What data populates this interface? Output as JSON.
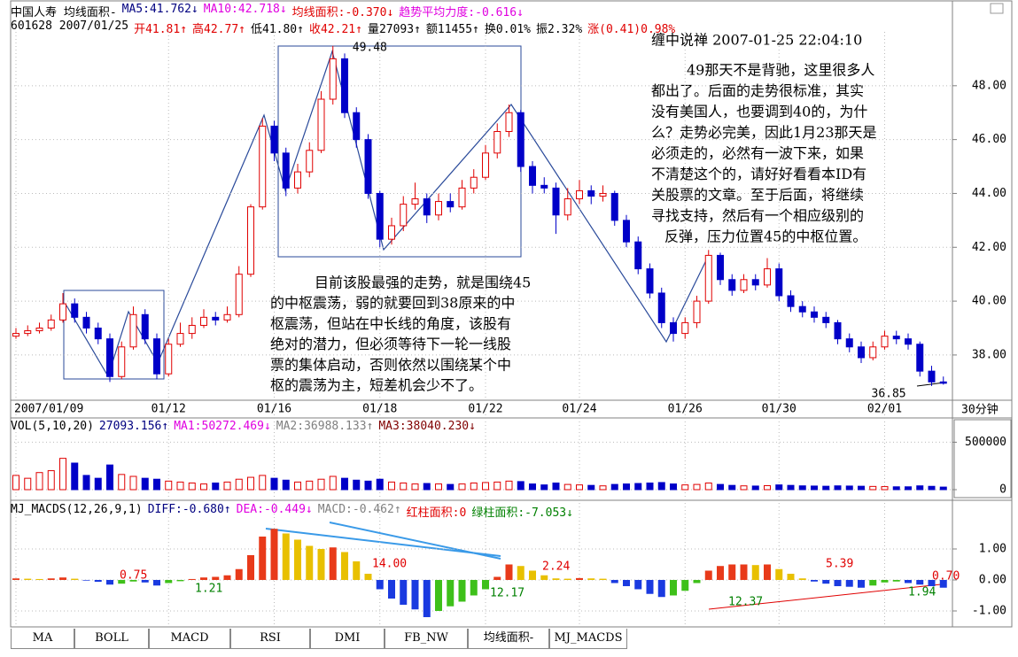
{
  "header": {
    "line1": [
      {
        "text": "中国人寿 均线面积-",
        "color": "#000000"
      },
      {
        "text": "MA5:41.762↓",
        "color": "#000080"
      },
      {
        "text": "MA10:42.718↓",
        "color": "#e000e0"
      },
      {
        "text": "均线面积:-0.370↓",
        "color": "#e00000"
      },
      {
        "text": "趋势平均力度:-0.616↓",
        "color": "#e000e0"
      }
    ],
    "line2": [
      {
        "text": "601628 2007/01/25",
        "color": "#000000"
      },
      {
        "text": "开41.81↑",
        "color": "#e00000"
      },
      {
        "text": "高42.77↑",
        "color": "#e00000"
      },
      {
        "text": "低41.80↑",
        "color": "#000000"
      },
      {
        "text": "收42.21↑",
        "color": "#e00000"
      },
      {
        "text": "量27093↑",
        "color": "#000000"
      },
      {
        "text": "额11455↑",
        "color": "#000000"
      },
      {
        "text": "换0.01%",
        "color": "#000000"
      },
      {
        "text": "振2.32%",
        "color": "#000000"
      },
      {
        "text": "涨(0.41)0.98%",
        "color": "#e00000"
      }
    ],
    "period": "30分钟"
  },
  "volume_header": [
    {
      "text": "VOL(5,10,20)",
      "color": "#000000"
    },
    {
      "text": "27093.156↑",
      "color": "#000080"
    },
    {
      "text": "MA1:50272.469↓",
      "color": "#e000e0"
    },
    {
      "text": "MA2:36988.133↑",
      "color": "#808080"
    },
    {
      "text": "MA3:38040.230↓",
      "color": "#800000"
    }
  ],
  "macd_header": [
    {
      "text": "MJ_MACDS(12,26,9,1)",
      "color": "#000000"
    },
    {
      "text": "DIFF:-0.680↑",
      "color": "#000080"
    },
    {
      "text": "DEA:-0.449↓",
      "color": "#e000e0"
    },
    {
      "text": "MACD:-0.462↑",
      "color": "#808080"
    },
    {
      "text": "红柱面积:0",
      "color": "#e00000"
    },
    {
      "text": "绿柱面积:-7.053↓",
      "color": "#008000"
    }
  ],
  "comment": {
    "title": "缠中说禅 2007-01-25 22:04:10",
    "lines": [
      "49那天不是背驰，这里很多人",
      "都出了。后面的走势很标准，其实",
      "没有美国人，也要调到40的，为什",
      "么？走势必完美，因此1月23那天是",
      "必须走的，必然有一波下来，如果",
      "不清楚这个的，请好好看看本ID有",
      "关股票的文章。至于后面，将继续",
      "寻找支持，然后有一个相应级别的",
      "反弹，压力位置45的中枢位置。"
    ]
  },
  "analysis": {
    "lines": [
      "目前该股最强的走势，就是围绕45",
      "的中枢震荡，弱的就要回到38原来的中",
      "枢震荡，但站在中长线的角度，该股有",
      "绝对的潜力，但必须等待下一轮一线股",
      "票的集体启动，否则依然以围绕某个中",
      "枢的震荡为主，短差机会少不了。"
    ]
  },
  "tabs": [
    "MA",
    "BOLL",
    "MACD",
    "RSI",
    "DMI",
    "FB_NW",
    "均线面积-",
    "MJ_MACDS"
  ],
  "chart_data": [
    {
      "type": "candlestick",
      "categories": [
        "2007/01/09",
        null,
        null,
        null,
        null,
        null,
        null,
        null,
        null,
        null,
        null,
        null,
        null,
        "01/12",
        null,
        null,
        null,
        null,
        null,
        null,
        null,
        null,
        "01/16",
        null,
        null,
        null,
        null,
        null,
        null,
        null,
        null,
        "01/18",
        null,
        null,
        null,
        null,
        null,
        null,
        null,
        null,
        "01/22",
        null,
        null,
        null,
        null,
        null,
        null,
        null,
        "01/24",
        null,
        null,
        null,
        null,
        null,
        null,
        null,
        null,
        "01/26",
        null,
        null,
        null,
        null,
        null,
        null,
        null,
        "01/30",
        null,
        null,
        null,
        null,
        null,
        null,
        null,
        null,
        "02/01",
        null,
        null,
        null,
        null,
        null
      ],
      "candles": [
        [
          38.7,
          39.0,
          38.6,
          38.8
        ],
        [
          38.8,
          39.1,
          38.7,
          38.9
        ],
        [
          38.9,
          39.2,
          38.8,
          39.0
        ],
        [
          39.0,
          39.5,
          38.9,
          39.3
        ],
        [
          39.3,
          40.3,
          39.2,
          39.9
        ],
        [
          39.9,
          40.1,
          39.2,
          39.4
        ],
        [
          39.4,
          39.6,
          38.8,
          39.0
        ],
        [
          39.0,
          39.2,
          38.4,
          38.6
        ],
        [
          38.6,
          38.8,
          37.0,
          37.2
        ],
        [
          37.2,
          38.5,
          37.1,
          38.3
        ],
        [
          38.3,
          39.8,
          38.2,
          39.5
        ],
        [
          39.5,
          39.7,
          38.4,
          38.6
        ],
        [
          38.6,
          38.8,
          37.1,
          37.3
        ],
        [
          37.3,
          38.6,
          37.2,
          38.4
        ],
        [
          38.4,
          39.2,
          38.3,
          38.8
        ],
        [
          38.8,
          39.4,
          38.6,
          39.1
        ],
        [
          39.1,
          39.7,
          39.0,
          39.4
        ],
        [
          39.4,
          39.6,
          39.1,
          39.3
        ],
        [
          39.3,
          39.8,
          39.2,
          39.5
        ],
        [
          39.5,
          41.3,
          39.4,
          41.0
        ],
        [
          41.0,
          43.6,
          40.9,
          43.5
        ],
        [
          43.5,
          46.8,
          43.4,
          46.5
        ],
        [
          46.5,
          46.7,
          45.2,
          45.5
        ],
        [
          45.5,
          45.7,
          43.9,
          44.2
        ],
        [
          44.2,
          45.1,
          44.0,
          44.8
        ],
        [
          44.8,
          45.9,
          44.6,
          45.6
        ],
        [
          45.6,
          47.8,
          45.5,
          47.5
        ],
        [
          47.5,
          49.48,
          47.3,
          49.0
        ],
        [
          49.0,
          49.2,
          46.8,
          47.0
        ],
        [
          47.0,
          47.2,
          45.7,
          46.0
        ],
        [
          46.0,
          46.2,
          43.8,
          44.0
        ],
        [
          44.0,
          44.1,
          42.0,
          42.3
        ],
        [
          42.3,
          43.1,
          42.1,
          42.8
        ],
        [
          42.8,
          43.9,
          42.6,
          43.6
        ],
        [
          43.6,
          44.4,
          43.4,
          43.8
        ],
        [
          43.8,
          44.0,
          42.9,
          43.2
        ],
        [
          43.2,
          44.0,
          43.0,
          43.7
        ],
        [
          43.7,
          44.0,
          43.3,
          43.5
        ],
        [
          43.5,
          44.5,
          43.4,
          44.2
        ],
        [
          44.2,
          44.9,
          44.0,
          44.6
        ],
        [
          44.6,
          45.8,
          44.5,
          45.5
        ],
        [
          45.5,
          46.6,
          45.3,
          46.3
        ],
        [
          46.3,
          47.3,
          46.1,
          47.0
        ],
        [
          47.0,
          47.1,
          44.8,
          45.0
        ],
        [
          45.0,
          45.2,
          44.0,
          44.3
        ],
        [
          44.3,
          44.6,
          44.0,
          44.2
        ],
        [
          44.2,
          44.4,
          42.5,
          43.2
        ],
        [
          43.2,
          44.2,
          43.0,
          43.8
        ],
        [
          43.8,
          44.5,
          43.6,
          44.1
        ],
        [
          44.1,
          44.3,
          43.6,
          43.9
        ],
        [
          43.9,
          44.3,
          43.7,
          44.0
        ],
        [
          44.0,
          44.1,
          42.8,
          43.0
        ],
        [
          43.0,
          43.2,
          42.0,
          42.2
        ],
        [
          42.2,
          42.4,
          41.0,
          41.2
        ],
        [
          41.2,
          41.4,
          40.1,
          40.3
        ],
        [
          40.3,
          40.5,
          39.0,
          39.2
        ],
        [
          39.2,
          39.4,
          38.5,
          38.8
        ],
        [
          38.8,
          39.4,
          38.6,
          39.2
        ],
        [
          39.2,
          40.2,
          39.0,
          40.0
        ],
        [
          40.0,
          41.9,
          39.9,
          41.7
        ],
        [
          41.7,
          41.8,
          40.6,
          40.8
        ],
        [
          40.8,
          41.0,
          40.2,
          40.4
        ],
        [
          40.4,
          41.0,
          40.3,
          40.8
        ],
        [
          40.8,
          41.0,
          40.4,
          40.6
        ],
        [
          40.6,
          41.6,
          40.5,
          41.2
        ],
        [
          41.2,
          41.4,
          40.0,
          40.2
        ],
        [
          40.2,
          40.4,
          39.6,
          39.8
        ],
        [
          39.8,
          40.0,
          39.4,
          39.6
        ],
        [
          39.6,
          39.8,
          39.2,
          39.4
        ],
        [
          39.4,
          39.6,
          39.0,
          39.2
        ],
        [
          39.2,
          39.3,
          38.4,
          38.6
        ],
        [
          38.6,
          38.8,
          38.1,
          38.3
        ],
        [
          38.3,
          38.5,
          37.7,
          37.9
        ],
        [
          37.9,
          38.5,
          37.8,
          38.3
        ],
        [
          38.3,
          38.9,
          38.2,
          38.7
        ],
        [
          38.7,
          38.9,
          38.4,
          38.6
        ],
        [
          38.6,
          38.8,
          38.2,
          38.4
        ],
        [
          38.4,
          38.5,
          37.2,
          37.4
        ],
        [
          37.4,
          37.6,
          36.85,
          37.0
        ],
        [
          37.0,
          37.2,
          36.9,
          36.95
        ]
      ],
      "up_color": "#e00000",
      "down_color": "#0000c8",
      "ylim": [
        36.32,
        50.0
      ],
      "yticks": [
        {
          "value": 38,
          "label": "38.00"
        },
        {
          "value": 40,
          "label": "40.00"
        },
        {
          "value": 42,
          "label": "42.00"
        },
        {
          "value": 44,
          "label": "44.00"
        },
        {
          "value": 46,
          "label": "46.00"
        },
        {
          "value": 48,
          "label": "48.00"
        }
      ],
      "annotations": [
        {
          "text": "49.48",
          "index": 27
        },
        {
          "text": "36.85",
          "index": 78
        }
      ],
      "grid": true
    },
    {
      "type": "bar",
      "values": [
        150000,
        120000,
        180000,
        200000,
        330000,
        280000,
        150000,
        120000,
        260000,
        160000,
        140000,
        120000,
        110000,
        90000,
        80000,
        70000,
        60000,
        70000,
        80000,
        110000,
        130000,
        150000,
        120000,
        100000,
        80000,
        90000,
        110000,
        140000,
        120000,
        100000,
        90000,
        110000,
        80000,
        70000,
        60000,
        65000,
        60000,
        55000,
        60000,
        70000,
        75000,
        80000,
        90000,
        85000,
        60000,
        50000,
        70000,
        55000,
        50000,
        45000,
        40000,
        55000,
        60000,
        65000,
        70000,
        75000,
        60000,
        50000,
        55000,
        70000,
        55000,
        45000,
        40000,
        38000,
        42000,
        50000,
        45000,
        40000,
        38000,
        36000,
        40000,
        38000,
        36000,
        34000,
        32000,
        30000,
        30000,
        40000,
        35000,
        27093
      ],
      "up_color": "#e00000",
      "down_color": "#0000c8",
      "ylim": [
        0,
        700000
      ],
      "yticks": [
        0,
        500000
      ]
    },
    {
      "type": "bar",
      "values": [
        0.05,
        0.04,
        0.03,
        0.05,
        0.08,
        0.04,
        -0.02,
        -0.06,
        -0.15,
        -0.12,
        -0.05,
        -0.08,
        -0.18,
        -0.1,
        -0.04,
        0.03,
        0.08,
        0.1,
        0.15,
        0.35,
        0.8,
        1.4,
        1.65,
        1.5,
        1.3,
        1.1,
        1.0,
        1.05,
        0.9,
        0.6,
        0.2,
        -0.3,
        -0.6,
        -0.8,
        -0.95,
        -1.2,
        -1.0,
        -0.85,
        -0.7,
        -0.5,
        -0.3,
        0.1,
        0.5,
        0.45,
        0.3,
        0.15,
        0.05,
        0.04,
        0.06,
        0.05,
        0.04,
        -0.1,
        -0.2,
        -0.3,
        -0.45,
        -0.55,
        -0.5,
        -0.35,
        -0.1,
        0.3,
        0.45,
        0.5,
        0.5,
        0.48,
        0.5,
        0.35,
        0.2,
        0.05,
        -0.05,
        -0.12,
        -0.2,
        -0.22,
        -0.25,
        -0.18,
        -0.08,
        -0.05,
        -0.1,
        -0.15,
        -0.2,
        -0.25
      ],
      "colors": {
        "rise": "#e83a1a",
        "fall": "#e8c000",
        "down": "#1a3ae0",
        "recover": "#3ec01a"
      },
      "ylim": [
        -1.429,
        2.371
      ],
      "yticks": [
        {
          "value": 1,
          "label": "1.00"
        },
        {
          "value": 0,
          "label": "0.00"
        },
        {
          "value": -1,
          "label": "-1.00"
        }
      ],
      "annotations": [
        {
          "text": "0.75",
          "color": "#e00000"
        },
        {
          "text": "1.21",
          "color": "#008000"
        },
        {
          "text": "14.00",
          "color": "#e00000"
        },
        {
          "text": "12.17",
          "color": "#008000"
        },
        {
          "text": "2.24",
          "color": "#e00000"
        },
        {
          "text": "12.37",
          "color": "#008000"
        },
        {
          "text": "5.39",
          "color": "#e00000"
        },
        {
          "text": "1.94",
          "color": "#008000"
        },
        {
          "text": "0.70",
          "color": "#e00000"
        }
      ]
    }
  ]
}
